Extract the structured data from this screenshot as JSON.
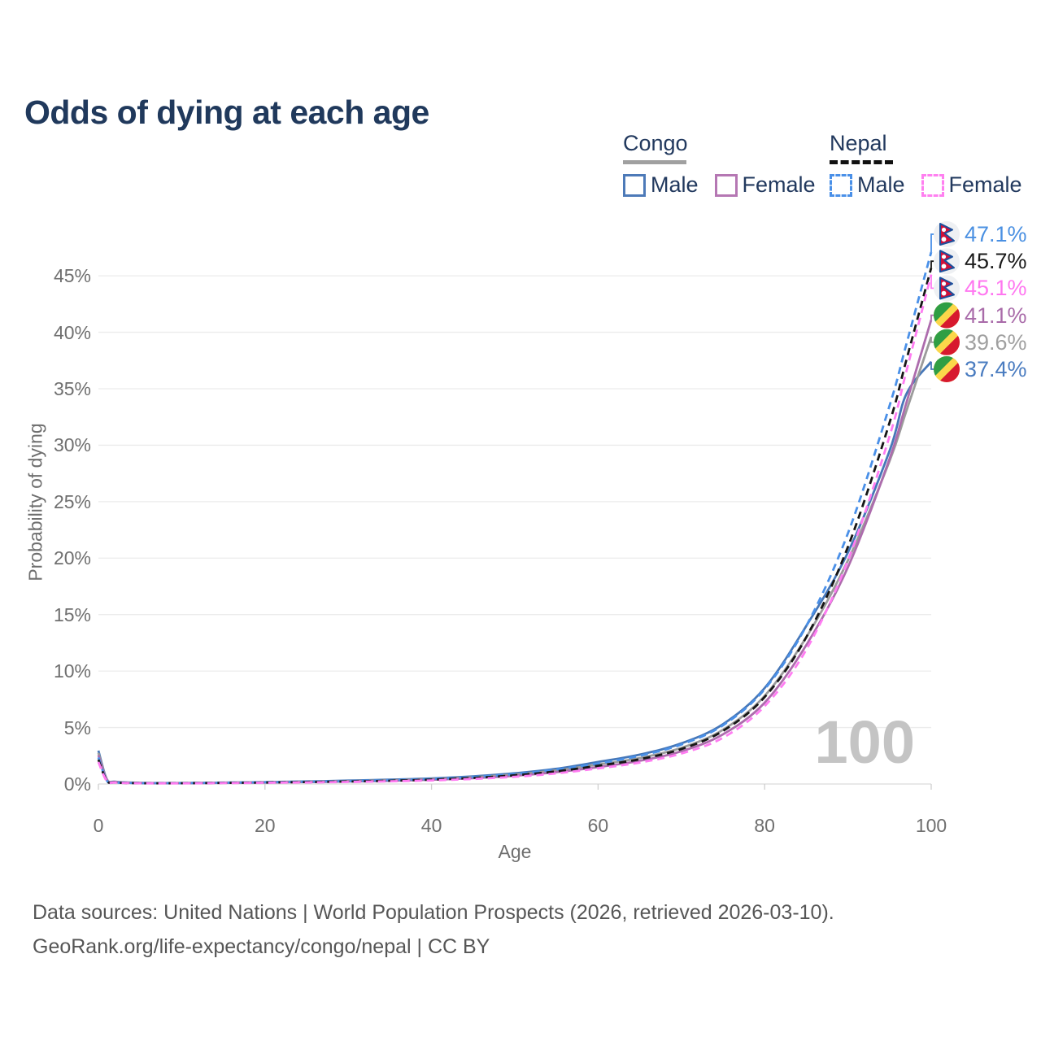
{
  "title": "Odds of dying at each age",
  "legend": {
    "groups": [
      {
        "country": "Congo",
        "underline_style": "solid",
        "underline_color": "#a0a0a0",
        "items": [
          {
            "label": "Male",
            "swatch_color": "#4d7ab8",
            "swatch_style": "solid"
          },
          {
            "label": "Female",
            "swatch_color": "#b577b3",
            "swatch_style": "solid"
          }
        ]
      },
      {
        "country": "Nepal",
        "underline_style": "dashed",
        "underline_color": "#111111",
        "items": [
          {
            "label": "Male",
            "swatch_color": "#4a90e8",
            "swatch_style": "dashed"
          },
          {
            "label": "Female",
            "swatch_color": "#ff80f0",
            "swatch_style": "dashed"
          }
        ]
      }
    ]
  },
  "chart_data": {
    "type": "line",
    "xlabel": "Age",
    "ylabel": "Probability of dying",
    "xlim": [
      0,
      100
    ],
    "ylim": [
      0,
      49
    ],
    "xticks": [
      0,
      20,
      40,
      60,
      80,
      100
    ],
    "yticks": [
      0,
      5,
      10,
      15,
      20,
      25,
      30,
      35,
      40,
      45
    ],
    "ytick_suffix": "%",
    "grid": "horizontal-only",
    "legend_position": "top-right",
    "watermark": "100",
    "x": [
      0,
      1,
      2,
      5,
      10,
      15,
      20,
      25,
      30,
      35,
      40,
      45,
      50,
      55,
      60,
      65,
      70,
      75,
      80,
      85,
      90,
      95,
      97,
      100
    ],
    "series": [
      {
        "name": "Congo Male",
        "country": "Congo",
        "sex": "Male",
        "color": "#4677b8",
        "dash": false,
        "flag": "congo",
        "end_label": "37.4%",
        "label_color": "#4a7cc0",
        "values": [
          2.95,
          0.45,
          0.2,
          0.1,
          0.09,
          0.12,
          0.17,
          0.23,
          0.3,
          0.38,
          0.5,
          0.68,
          0.95,
          1.35,
          1.95,
          2.6,
          3.6,
          5.3,
          8.5,
          14.0,
          20.5,
          29.5,
          34.5,
          37.4
        ]
      },
      {
        "name": "Congo Total",
        "country": "Congo",
        "sex": "Both",
        "color": "#9b9b9b",
        "dash": false,
        "flag": "congo",
        "end_label": "39.6%",
        "label_color": "#a0a0a0",
        "values": [
          2.75,
          0.42,
          0.18,
          0.09,
          0.08,
          0.11,
          0.15,
          0.2,
          0.26,
          0.33,
          0.44,
          0.6,
          0.84,
          1.2,
          1.72,
          2.3,
          3.2,
          4.8,
          7.8,
          13.0,
          19.8,
          28.6,
          33.0,
          39.6
        ]
      },
      {
        "name": "Congo Female",
        "country": "Congo",
        "sex": "Female",
        "color": "#ad6cad",
        "dash": false,
        "flag": "congo",
        "end_label": "41.1%",
        "label_color": "#a96ba9",
        "values": [
          2.55,
          0.38,
          0.17,
          0.085,
          0.075,
          0.1,
          0.13,
          0.17,
          0.22,
          0.28,
          0.38,
          0.52,
          0.73,
          1.05,
          1.5,
          2.05,
          2.9,
          4.4,
          7.2,
          12.3,
          19.2,
          28.8,
          33.7,
          41.1
        ]
      },
      {
        "name": "Nepal Male",
        "country": "Nepal",
        "sex": "Male",
        "color": "#4a90e8",
        "dash": true,
        "flag": "nepal",
        "end_label": "47.1%",
        "label_color": "#4a90e2",
        "values": [
          2.35,
          0.32,
          0.14,
          0.08,
          0.08,
          0.11,
          0.15,
          0.2,
          0.26,
          0.34,
          0.45,
          0.62,
          0.88,
          1.28,
          1.82,
          2.5,
          3.5,
          5.2,
          8.4,
          14.0,
          22.2,
          33.5,
          38.9,
          47.1
        ]
      },
      {
        "name": "Nepal Total",
        "country": "Nepal",
        "sex": "Both",
        "color": "#161616",
        "dash": true,
        "flag": "nepal",
        "end_label": "45.7%",
        "label_color": "#1a1a1a",
        "values": [
          2.15,
          0.3,
          0.13,
          0.07,
          0.07,
          0.1,
          0.13,
          0.17,
          0.22,
          0.29,
          0.39,
          0.54,
          0.77,
          1.12,
          1.62,
          2.2,
          3.1,
          4.7,
          7.7,
          13.0,
          21.0,
          32.0,
          37.5,
          45.7
        ]
      },
      {
        "name": "Nepal Female",
        "country": "Nepal",
        "sex": "Female",
        "color": "#ff7cf2",
        "dash": true,
        "flag": "nepal",
        "end_label": "45.1%",
        "label_color": "#ff77f0",
        "values": [
          1.95,
          0.27,
          0.12,
          0.065,
          0.06,
          0.08,
          0.11,
          0.14,
          0.18,
          0.24,
          0.32,
          0.45,
          0.64,
          0.94,
          1.38,
          1.9,
          2.7,
          4.1,
          6.9,
          11.9,
          19.8,
          30.8,
          36.5,
          45.1
        ]
      }
    ]
  },
  "footer": {
    "line1": "Data sources: United Nations | World Population Prospects (2026, retrieved 2026-03-10).",
    "line2": "GeoRank.org/life-expectancy/congo/nepal | CC BY"
  },
  "colors": {
    "title": "#20395c",
    "axis_text": "#6f6f6f",
    "gridline": "#ececec",
    "baseline": "#d9d9d9",
    "watermark": "#c4c4c4",
    "footer_text": "#565656"
  }
}
